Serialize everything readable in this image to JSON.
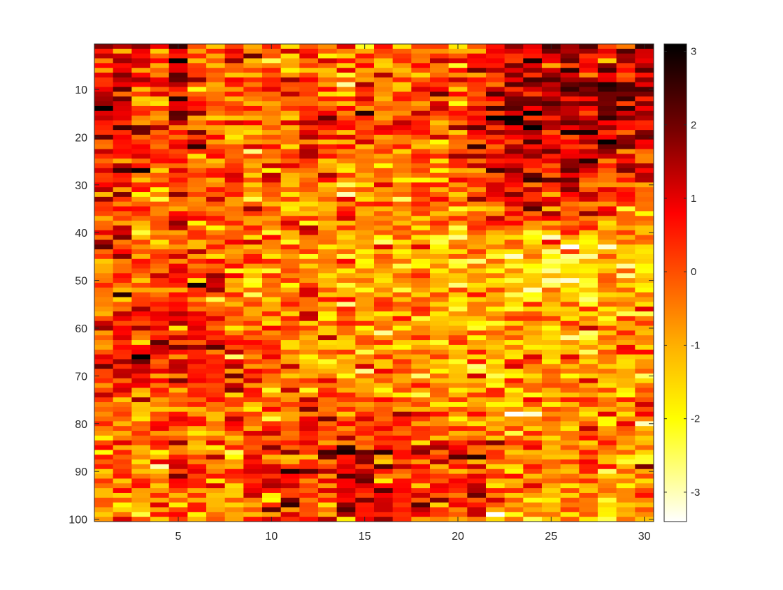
{
  "chart_data": {
    "type": "heatmap",
    "title": "",
    "xlabel": "",
    "ylabel": "",
    "rows": 100,
    "cols": 30,
    "xlim": [
      0.5,
      30.5
    ],
    "ylim": [
      0.5,
      100.5
    ],
    "y_direction": "reverse",
    "x_ticks": [
      5,
      10,
      15,
      20,
      25,
      30
    ],
    "y_ticks": [
      10,
      20,
      30,
      40,
      50,
      60,
      70,
      80,
      90,
      100
    ],
    "x_tick_labels": [
      "5",
      "10",
      "15",
      "20",
      "25",
      "30"
    ],
    "y_tick_labels": [
      "10",
      "20",
      "30",
      "40",
      "50",
      "60",
      "70",
      "80",
      "90",
      "100"
    ],
    "colormap": "hot (reversed)",
    "colormap_stops": [
      {
        "value": 3.1,
        "color": "#000000"
      },
      {
        "value": 1.9,
        "color": "#7a0000"
      },
      {
        "value": 0.8,
        "color": "#ff0000"
      },
      {
        "value": -1.0,
        "color": "#ffb000"
      },
      {
        "value": -2.0,
        "color": "#ffff00"
      },
      {
        "value": -3.4,
        "color": "#ffffff"
      }
    ],
    "color_limits": [
      -3.4,
      3.1
    ],
    "colorbar": {
      "location": "east",
      "ticks": [
        3,
        2,
        1,
        0,
        -1,
        -2,
        -3
      ],
      "tick_labels": [
        "3",
        "2",
        "1",
        "0",
        "-1",
        "-2",
        "-3"
      ]
    },
    "trend_description_matrix": [
      [
        0.5,
        0.6,
        0.4,
        -0.3,
        0.5,
        0.2,
        -0.2,
        0.0,
        -0.4,
        -0.2,
        -0.3,
        -0.1,
        -0.3,
        -0.6,
        -0.4,
        -0.2,
        -0.3,
        -0.4,
        -0.6,
        -0.5,
        0.4,
        0.9,
        1.0,
        1.3,
        1.2,
        1.1,
        1.0,
        1.0,
        1.1,
        1.0
      ],
      [
        0.7,
        0.8,
        0.4,
        -0.1,
        0.6,
        0.3,
        0.0,
        0.0,
        -0.1,
        -0.1,
        -0.1,
        0.0,
        -0.2,
        -0.2,
        -0.1,
        -0.1,
        0.0,
        -0.1,
        -0.2,
        -0.1,
        0.3,
        1.0,
        1.5,
        1.6,
        1.5,
        1.6,
        1.5,
        1.4,
        1.5,
        1.3
      ],
      [
        0.6,
        0.7,
        0.4,
        0.0,
        0.5,
        0.4,
        0.1,
        0.2,
        0.0,
        0.1,
        0.0,
        0.2,
        0.1,
        0.0,
        0.1,
        0.0,
        0.2,
        0.1,
        0.0,
        0.2,
        0.6,
        1.1,
        1.2,
        1.4,
        1.2,
        1.3,
        1.3,
        1.2,
        1.2,
        1.1
      ],
      [
        0.2,
        0.3,
        -0.2,
        -0.6,
        0.1,
        -0.1,
        -0.3,
        -0.4,
        -0.6,
        -0.7,
        -0.6,
        -0.6,
        -0.8,
        -0.8,
        -0.6,
        -0.6,
        -0.4,
        -0.5,
        -0.6,
        -0.5,
        -0.2,
        0.2,
        0.4,
        0.4,
        0.3,
        0.3,
        0.2,
        0.1,
        0.0,
        -0.2
      ],
      [
        0.1,
        0.2,
        -0.3,
        -0.6,
        0.0,
        -0.2,
        -0.4,
        -0.5,
        -0.8,
        -0.9,
        -0.9,
        -0.8,
        -1.0,
        -1.1,
        -1.0,
        -0.9,
        -0.8,
        -0.9,
        -1.1,
        -1.1,
        -1.0,
        -1.1,
        -1.4,
        -1.8,
        -1.9,
        -1.8,
        -1.6,
        -1.5,
        -1.4,
        -1.1
      ],
      [
        0.3,
        0.5,
        0.4,
        0.2,
        0.7,
        0.5,
        0.3,
        0.0,
        -0.4,
        -0.5,
        -0.4,
        -0.4,
        -0.7,
        -0.8,
        -0.6,
        -0.5,
        -0.5,
        -0.6,
        -0.8,
        -0.8,
        -0.8,
        -0.9,
        -1.2,
        -1.3,
        -1.2,
        -1.3,
        -1.3,
        -1.2,
        -1.2,
        -1.1
      ],
      [
        0.4,
        0.6,
        0.9,
        1.0,
        1.1,
        0.9,
        0.7,
        0.4,
        -0.1,
        -0.2,
        -0.3,
        -0.4,
        -0.7,
        -0.8,
        -0.8,
        -0.7,
        -0.6,
        -0.7,
        -0.9,
        -0.9,
        -0.9,
        -1.0,
        -1.1,
        -1.1,
        -0.9,
        -0.9,
        -0.8,
        -0.9,
        -0.8,
        -0.7
      ],
      [
        -0.3,
        -0.2,
        -0.1,
        -0.1,
        0.1,
        0.0,
        -0.2,
        -0.3,
        -0.4,
        -0.4,
        -0.3,
        -0.2,
        -0.4,
        -0.5,
        -0.5,
        -0.4,
        -0.5,
        -0.6,
        -0.8,
        -0.8,
        -0.8,
        -0.9,
        -1.0,
        -1.0,
        -0.9,
        -0.9,
        -0.8,
        -0.9,
        -0.7,
        -0.6
      ],
      [
        -0.2,
        -0.1,
        -0.3,
        -0.4,
        -0.2,
        -0.2,
        -0.3,
        -0.1,
        0.4,
        0.6,
        0.8,
        0.6,
        0.6,
        0.7,
        0.8,
        0.7,
        0.5,
        0.4,
        0.2,
        0.3,
        0.3,
        -0.4,
        -0.7,
        -0.8,
        -0.7,
        -0.6,
        -0.6,
        -0.6,
        -0.6,
        -0.5
      ],
      [
        -0.6,
        -0.5,
        -0.7,
        -0.7,
        -0.5,
        -0.5,
        -0.6,
        -0.4,
        0.2,
        0.5,
        0.8,
        0.6,
        0.5,
        0.7,
        0.7,
        0.6,
        0.4,
        0.3,
        0.2,
        0.2,
        0.1,
        -0.6,
        -0.9,
        -1.1,
        -1.0,
        -0.9,
        -0.8,
        -0.8,
        -0.7,
        -0.7
      ]
    ],
    "trend_description_row_anchors": [
      1,
      12,
      23,
      34,
      45,
      56,
      67,
      76,
      85,
      100
    ],
    "trend_description_noise": 0.9,
    "random_seed": 7
  }
}
